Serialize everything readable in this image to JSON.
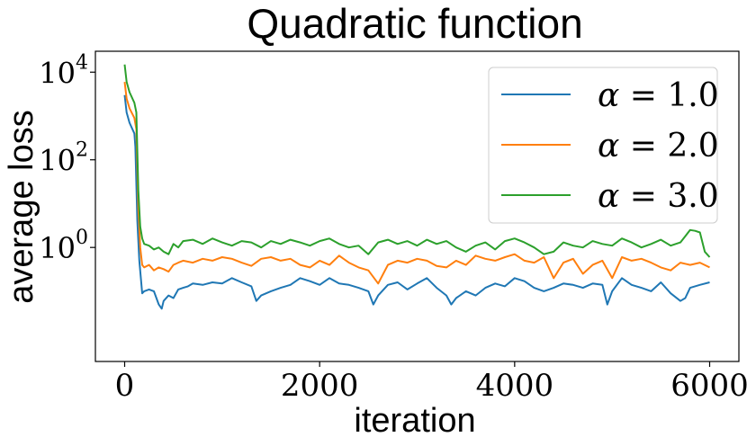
{
  "chart_data": {
    "type": "line",
    "title": "Quadratic function",
    "xlabel": "iteration",
    "ylabel": "average loss",
    "yscale": "log",
    "xlim": [
      -300,
      6300
    ],
    "ylim": [
      0.0025,
      30000
    ],
    "xticks": [
      0,
      2000,
      4000,
      6000
    ],
    "xtick_labels": [
      "0",
      "2000",
      "4000",
      "6000"
    ],
    "yticks": [
      {
        "value": 1,
        "base": "10",
        "exp": "0"
      },
      {
        "value": 100,
        "base": "10",
        "exp": "2"
      },
      {
        "value": 10000,
        "base": "10",
        "exp": "4"
      }
    ],
    "grid": false,
    "legend_position": "top-right",
    "series": [
      {
        "name": "α = 1.0",
        "label_alpha": "α",
        "label_rest": "= 1.0",
        "color": "#1f77b4",
        "x": [
          0,
          20,
          50,
          100,
          110,
          130,
          150,
          180,
          200,
          250,
          300,
          350,
          380,
          400,
          450,
          500,
          550,
          600,
          650,
          700,
          800,
          900,
          1000,
          1100,
          1200,
          1300,
          1350,
          1400,
          1500,
          1600,
          1700,
          1800,
          1900,
          2000,
          2100,
          2200,
          2300,
          2400,
          2500,
          2550,
          2600,
          2700,
          2800,
          2900,
          3000,
          3100,
          3200,
          3300,
          3350,
          3400,
          3500,
          3600,
          3700,
          3800,
          3900,
          4000,
          4100,
          4200,
          4300,
          4400,
          4500,
          4600,
          4700,
          4800,
          4900,
          4950,
          5000,
          5100,
          5200,
          5300,
          5400,
          5500,
          5600,
          5700,
          5750,
          5800,
          5900,
          6000
        ],
        "y": [
          3000,
          1200,
          700,
          400,
          200,
          4,
          0.5,
          0.09,
          0.1,
          0.11,
          0.1,
          0.05,
          0.04,
          0.06,
          0.08,
          0.07,
          0.11,
          0.12,
          0.13,
          0.15,
          0.14,
          0.16,
          0.15,
          0.2,
          0.16,
          0.13,
          0.06,
          0.08,
          0.1,
          0.12,
          0.14,
          0.2,
          0.17,
          0.14,
          0.2,
          0.15,
          0.14,
          0.12,
          0.1,
          0.05,
          0.08,
          0.14,
          0.16,
          0.11,
          0.15,
          0.2,
          0.12,
          0.08,
          0.05,
          0.07,
          0.1,
          0.08,
          0.12,
          0.15,
          0.13,
          0.2,
          0.17,
          0.12,
          0.1,
          0.12,
          0.15,
          0.14,
          0.12,
          0.15,
          0.14,
          0.05,
          0.1,
          0.2,
          0.14,
          0.12,
          0.1,
          0.16,
          0.09,
          0.06,
          0.07,
          0.12,
          0.14,
          0.16
        ]
      },
      {
        "name": "α = 2.0",
        "label_alpha": "α",
        "label_rest": "= 2.0",
        "color": "#ff7f0e",
        "x": [
          0,
          20,
          50,
          100,
          120,
          140,
          160,
          180,
          200,
          250,
          300,
          350,
          400,
          450,
          500,
          550,
          600,
          700,
          800,
          900,
          1000,
          1100,
          1200,
          1300,
          1400,
          1500,
          1600,
          1700,
          1800,
          1900,
          2000,
          2100,
          2200,
          2300,
          2400,
          2500,
          2600,
          2700,
          2800,
          2900,
          3000,
          3100,
          3200,
          3300,
          3400,
          3500,
          3600,
          3700,
          3800,
          3900,
          4000,
          4100,
          4200,
          4300,
          4400,
          4500,
          4600,
          4700,
          4800,
          4900,
          5000,
          5100,
          5200,
          5300,
          5400,
          5500,
          5600,
          5700,
          5800,
          5900,
          6000
        ],
        "y": [
          6000,
          2500,
          1500,
          900,
          500,
          8,
          1,
          0.4,
          0.35,
          0.4,
          0.3,
          0.35,
          0.32,
          0.28,
          0.4,
          0.45,
          0.5,
          0.45,
          0.55,
          0.5,
          0.6,
          0.55,
          0.45,
          0.38,
          0.55,
          0.6,
          0.5,
          0.55,
          0.4,
          0.35,
          0.5,
          0.4,
          0.65,
          0.45,
          0.35,
          0.3,
          0.15,
          0.4,
          0.5,
          0.45,
          0.55,
          0.5,
          0.38,
          0.35,
          0.5,
          0.4,
          0.65,
          0.55,
          0.5,
          0.6,
          0.7,
          0.5,
          0.45,
          0.6,
          0.2,
          0.45,
          0.55,
          0.25,
          0.4,
          0.5,
          0.2,
          0.6,
          0.5,
          0.55,
          0.45,
          0.35,
          0.3,
          0.45,
          0.4,
          0.45,
          0.35
        ]
      },
      {
        "name": "α = 3.0",
        "label_alpha": "α",
        "label_rest": "= 3.0",
        "color": "#2ca02c",
        "x": [
          0,
          20,
          50,
          100,
          120,
          140,
          160,
          180,
          200,
          250,
          300,
          350,
          400,
          450,
          500,
          550,
          600,
          700,
          800,
          900,
          1000,
          1100,
          1200,
          1300,
          1400,
          1500,
          1600,
          1700,
          1800,
          1900,
          2000,
          2100,
          2200,
          2300,
          2400,
          2500,
          2600,
          2700,
          2800,
          2900,
          3000,
          3100,
          3200,
          3300,
          3400,
          3500,
          3600,
          3700,
          3800,
          3900,
          4000,
          4100,
          4200,
          4300,
          4400,
          4500,
          4600,
          4700,
          4800,
          4900,
          5000,
          5100,
          5200,
          5300,
          5400,
          5500,
          5600,
          5700,
          5750,
          5800,
          5850,
          5900,
          5950,
          6000
        ],
        "y": [
          15000,
          6000,
          3500,
          2000,
          1200,
          20,
          3,
          1.6,
          1.2,
          1.1,
          0.9,
          1.0,
          0.8,
          0.7,
          1.2,
          1.0,
          1.4,
          1.5,
          1.2,
          1.6,
          1.3,
          1.1,
          1.4,
          1.3,
          1.0,
          1.4,
          1.2,
          1.5,
          1.3,
          1.1,
          1.4,
          1.6,
          1.2,
          1.0,
          1.1,
          0.7,
          1.3,
          1.5,
          1.2,
          1.4,
          1.1,
          1.5,
          1.2,
          1.4,
          1.0,
          0.8,
          1.1,
          1.3,
          0.9,
          1.4,
          1.6,
          1.3,
          1.0,
          0.7,
          0.8,
          1.3,
          1.1,
          1.0,
          1.4,
          1.2,
          1.1,
          1.6,
          1.3,
          1.0,
          1.2,
          1.5,
          1.1,
          1.3,
          1.8,
          2.5,
          2.4,
          2.2,
          0.8,
          0.6
        ]
      }
    ]
  }
}
